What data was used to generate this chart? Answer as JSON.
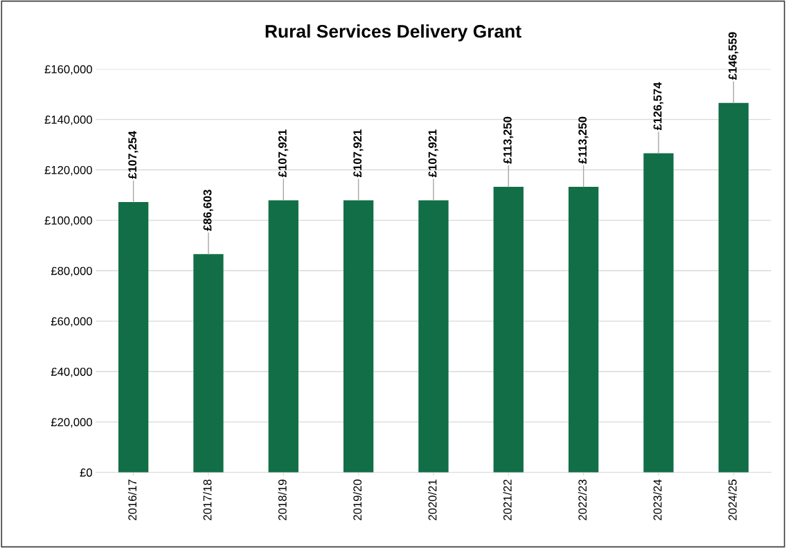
{
  "chart_data": {
    "type": "bar",
    "title": "Rural Services Delivery Grant",
    "categories": [
      "2016/17",
      "2017/18",
      "2018/19",
      "2019/20",
      "2020/21",
      "2021/22",
      "2022/23",
      "2023/24",
      "2024/25"
    ],
    "values": [
      107254,
      86603,
      107921,
      107921,
      107921,
      113250,
      113250,
      126574,
      146559
    ],
    "value_labels": [
      "£107,254",
      "£86,603",
      "£107,921",
      "£107,921",
      "£107,921",
      "£113,250",
      "£113,250",
      "£126,574",
      "£146,559"
    ],
    "color": "#126e47",
    "ylim": [
      0,
      160000
    ],
    "yticks": [
      {
        "value": 0,
        "label": "£0"
      },
      {
        "value": 20000,
        "label": "£20,000"
      },
      {
        "value": 40000,
        "label": "£40,000"
      },
      {
        "value": 60000,
        "label": "£60,000"
      },
      {
        "value": 80000,
        "label": "£80,000"
      },
      {
        "value": 100000,
        "label": "£100,000"
      },
      {
        "value": 120000,
        "label": "£120,000"
      },
      {
        "value": 140000,
        "label": "£140,000"
      },
      {
        "value": 160000,
        "label": "£160,000"
      }
    ],
    "grid": "y"
  }
}
